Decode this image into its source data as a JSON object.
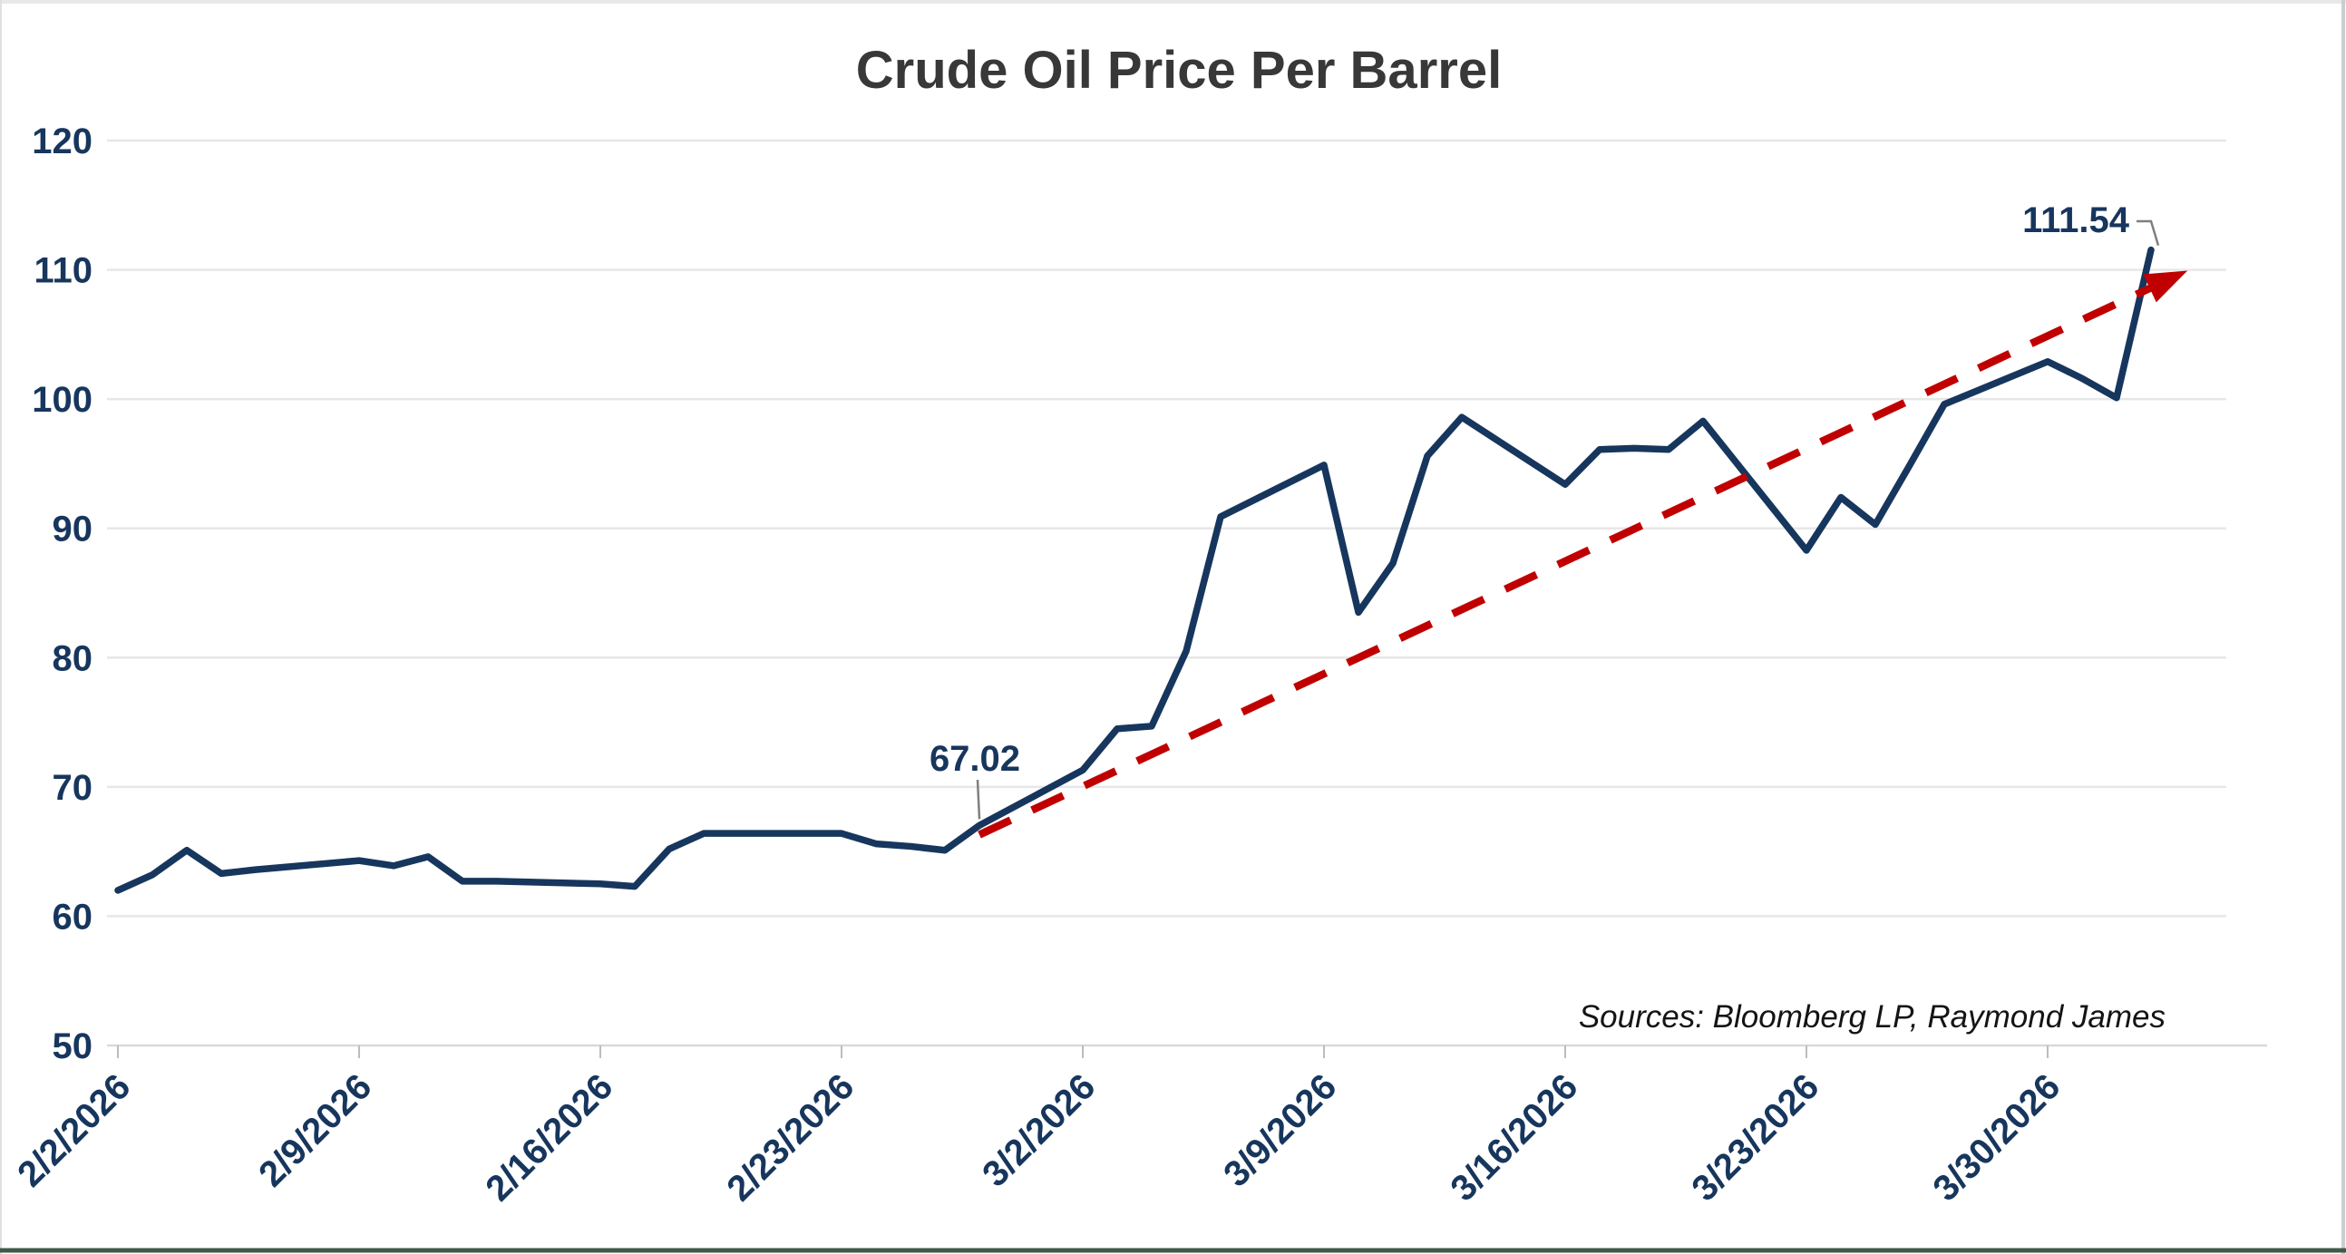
{
  "chart_data": {
    "type": "line",
    "title": "Crude Oil Price Per Barrel",
    "xlabel": "",
    "ylabel": "",
    "ylim": [
      50,
      120
    ],
    "y_ticks": [
      50,
      60,
      70,
      80,
      90,
      100,
      110,
      120
    ],
    "x_tick_labels": [
      "2/2/2026",
      "2/9/2026",
      "2/16/2026",
      "2/23/2026",
      "3/2/2026",
      "3/9/2026",
      "3/16/2026",
      "3/23/2026",
      "3/30/2026"
    ],
    "grid": "horizontal-only",
    "legend_position": "none",
    "sources_note": "Sources: Bloomberg LP, Raymond James",
    "series": [
      {
        "name": "Crude oil price per barrel (USD)",
        "color": "#17365d",
        "dates": [
          "2/2/2026",
          "2/3/2026",
          "2/4/2026",
          "2/5/2026",
          "2/6/2026",
          "2/9/2026",
          "2/10/2026",
          "2/11/2026",
          "2/12/2026",
          "2/13/2026",
          "2/16/2026",
          "2/17/2026",
          "2/18/2026",
          "2/19/2026",
          "2/20/2026",
          "2/23/2026",
          "2/24/2026",
          "2/25/2026",
          "2/26/2026",
          "2/27/2026",
          "3/2/2026",
          "3/3/2026",
          "3/4/2026",
          "3/5/2026",
          "3/6/2026",
          "3/9/2026",
          "3/10/2026",
          "3/11/2026",
          "3/12/2026",
          "3/13/2026",
          "3/16/2026",
          "3/17/2026",
          "3/18/2026",
          "3/19/2026",
          "3/20/2026",
          "3/23/2026",
          "3/24/2026",
          "3/25/2026",
          "3/26/2026",
          "3/27/2026",
          "3/30/2026",
          "3/31/2026",
          "4/1/2026",
          "4/2/2026"
        ],
        "day_offsets": [
          0,
          1,
          2,
          3,
          4,
          7,
          8,
          9,
          10,
          11,
          14,
          15,
          16,
          17,
          18,
          21,
          22,
          23,
          24,
          25,
          28,
          29,
          30,
          31,
          32,
          35,
          36,
          37,
          38,
          39,
          42,
          43,
          44,
          45,
          46,
          49,
          50,
          51,
          52,
          53,
          56,
          57,
          58,
          59
        ],
        "values": [
          62.0,
          63.2,
          65.1,
          63.3,
          63.6,
          64.3,
          63.9,
          64.6,
          62.7,
          62.7,
          62.5,
          62.3,
          65.2,
          66.4,
          66.4,
          66.4,
          65.6,
          65.4,
          65.1,
          67.02,
          71.3,
          74.5,
          74.7,
          80.5,
          90.9,
          94.9,
          83.5,
          87.3,
          95.6,
          98.6,
          93.4,
          96.1,
          96.2,
          96.1,
          98.3,
          88.3,
          92.4,
          90.3,
          94.9,
          99.6,
          102.9,
          101.6,
          100.1,
          111.54
        ]
      }
    ],
    "trend_line": {
      "name": "rising trend arrow",
      "color": "#c00000",
      "style": "dashed",
      "arrow": true,
      "start": {
        "date": "2/27/2026",
        "value": 66.3
      },
      "end": {
        "date": "4/3/2026",
        "value": 109.7
      }
    },
    "annotations": [
      {
        "label": "67.02",
        "date": "2/27/2026",
        "value": 67.02,
        "point_index": 19
      },
      {
        "label": "111.54",
        "date": "4/2/2026",
        "value": 111.54,
        "point_index": 43
      }
    ],
    "colors": {
      "series_line": "#17365d",
      "trend": "#c00000",
      "axis_labels": "#17365d",
      "title": "#383838",
      "gridline": "#e7e7e7",
      "axis_line": "#d9d9d9",
      "tick": "#bdbdbd",
      "leader": "#7f7f7f",
      "border_top": "#e8e8e8",
      "border_left": "#e0e0e0",
      "border_right": "#cdcdcd",
      "border_bottom": "#3e5a4b"
    }
  }
}
